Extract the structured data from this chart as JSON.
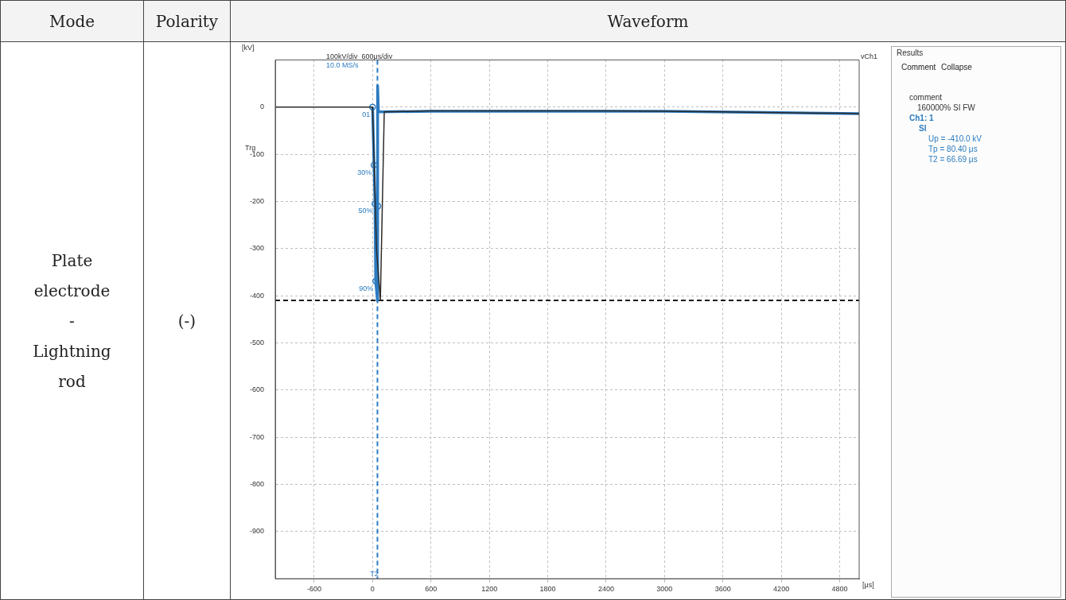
{
  "chart_data": {
    "type": "line",
    "title": "Waveform",
    "xlabel": "[μs]",
    "ylabel": "[kV]",
    "xlim": [
      -1000,
      5000
    ],
    "xticks": [
      -600,
      0,
      600,
      1200,
      1800,
      2400,
      3000,
      3600,
      4200,
      4800
    ],
    "ylim": [
      -1000,
      100
    ],
    "yticks": [
      -900,
      -800,
      -700,
      -600,
      -500,
      -400,
      -300,
      -200,
      -100,
      0
    ],
    "grid": true,
    "legend": false,
    "marker": "none",
    "line_style": "solid",
    "series": [
      {
        "color": "#2b2b2b",
        "x": [
          -1000,
          0,
          40,
          80,
          120,
          600,
          1800,
          2400,
          3000,
          3600,
          4200,
          4800,
          5000
        ],
        "values": [
          0,
          0,
          -300,
          -410,
          -10,
          -8,
          -8,
          -8,
          -9,
          -10,
          -12,
          -13,
          -14
        ]
      },
      {
        "color": "#2c7bc0",
        "x": [
          0,
          15,
          25,
          32,
          50,
          52,
          60,
          600,
          1800,
          3000,
          4200,
          5000
        ],
        "values": [
          0,
          -123,
          -205,
          -369,
          -410,
          45,
          -10,
          -9,
          -9,
          -9,
          -12,
          -14
        ]
      },
      {
        "type": "scatter",
        "marker": "circle",
        "color": "#2c7bc0",
        "x": [
          0,
          15,
          25,
          32,
          55
        ],
        "values": [
          0,
          -123,
          -205,
          -369,
          -210
        ]
      }
    ],
    "ref_lines": [
      {
        "axis": "y",
        "value": -410,
        "color": "#1a1a1a",
        "line_style": "dashed"
      },
      {
        "axis": "x",
        "value": 50,
        "color": "#2c7bc0",
        "line_style": "dashed"
      }
    ],
    "annotations": [
      "Mode",
      "Polarity",
      "Plate\nelectrode\n-\nLightning\nrod",
      "(-)",
      "100kV/div  600μs/div",
      "10.0 MS/s",
      "Trg",
      "vCh1",
      "Results",
      "Comment",
      "Collapse",
      "comment",
      "160000% SI FW",
      "Ch1: 1",
      "SI",
      "Up = -410.0 kV",
      "Tp = 80.40 μs",
      "T2 = 66.69 μs",
      {
        "text": "01",
        "x": 0,
        "y": 0
      },
      {
        "text": "30%",
        "x": 15,
        "y": -123
      },
      {
        "text": "50%",
        "x": 25,
        "y": -205
      },
      {
        "text": "90%",
        "x": 32,
        "y": -369
      },
      {
        "text": "T2",
        "x": 50,
        "y": -1000
      }
    ]
  }
}
